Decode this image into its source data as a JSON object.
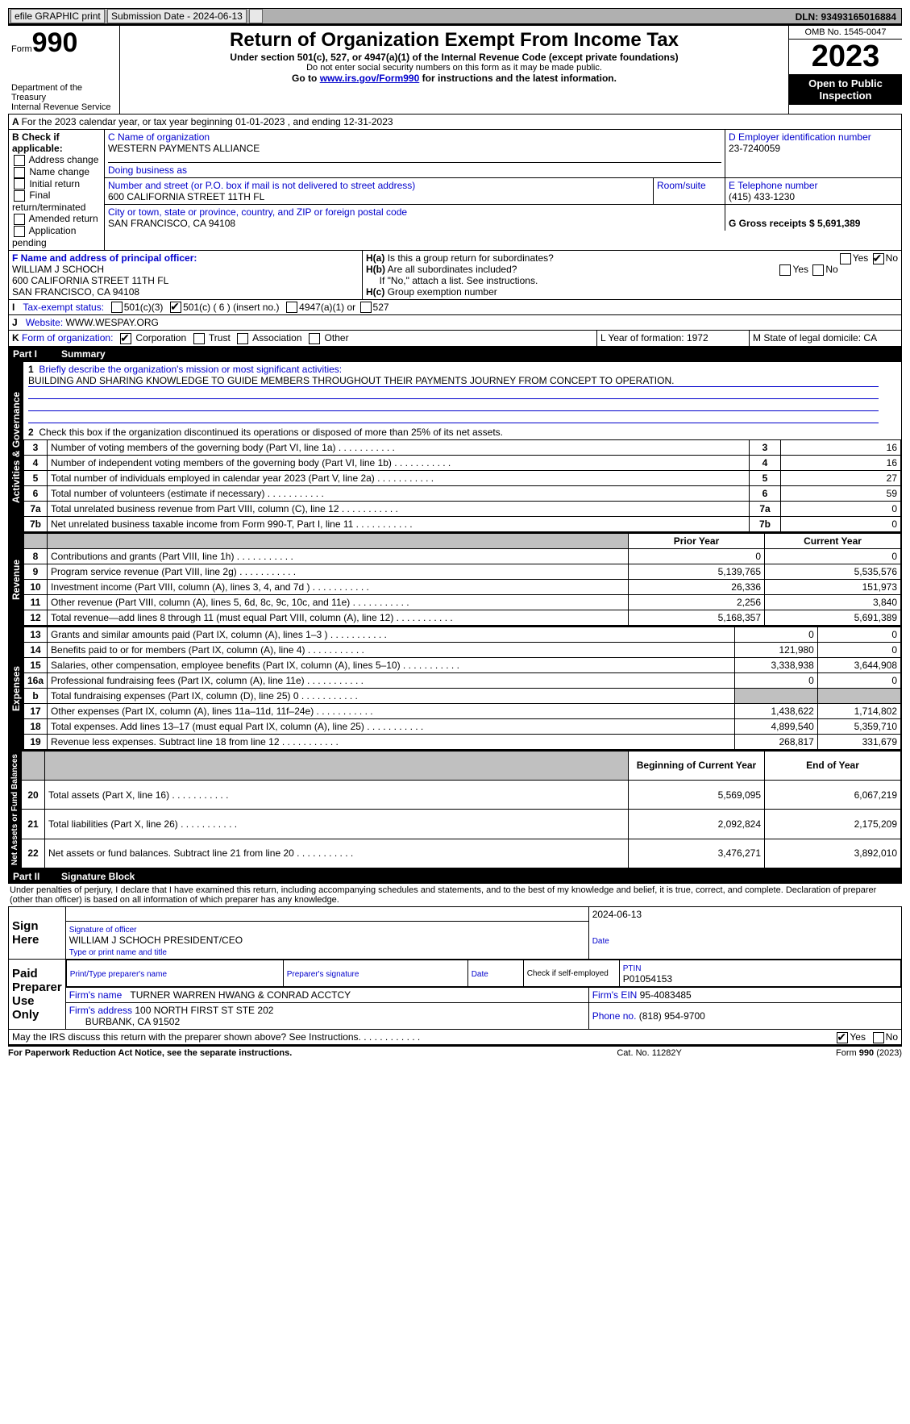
{
  "topbar": {
    "efile": "efile GRAPHIC print",
    "subdate_lbl": "Submission Date - 2024-06-13",
    "dln": "DLN: 93493165016884"
  },
  "header": {
    "form_prefix": "Form",
    "form_no": "990",
    "dept": "Department of the Treasury",
    "irs": "Internal Revenue Service",
    "title": "Return of Organization Exempt From Income Tax",
    "sub1": "Under section 501(c), 527, or 4947(a)(1) of the Internal Revenue Code (except private foundations)",
    "sub2": "Do not enter social security numbers on this form as it may be made public.",
    "sub3_pre": "Go to ",
    "sub3_link": "www.irs.gov/Form990",
    "sub3_post": " for instructions and the latest information.",
    "omb": "OMB No. 1545-0047",
    "year": "2023",
    "open": "Open to Public Inspection"
  },
  "secA": {
    "line": "For the 2023 calendar year, or tax year beginning 01-01-2023   , and ending 12-31-2023",
    "b_lbl": "B Check if applicable:",
    "b_opts": [
      "Address change",
      "Name change",
      "Initial return",
      "Final return/terminated",
      "Amended return",
      "Application pending"
    ],
    "c_lbl": "C Name of organization",
    "c_name": "WESTERN PAYMENTS ALLIANCE",
    "dba_lbl": "Doing business as",
    "addr_lbl": "Number and street (or P.O. box if mail is not delivered to street address)",
    "addr": "600 CALIFORNIA STREET 11TH FL",
    "room_lbl": "Room/suite",
    "city_lbl": "City or town, state or province, country, and ZIP or foreign postal code",
    "city": "SAN FRANCISCO, CA  94108",
    "d_lbl": "D Employer identification number",
    "d_val": "23-7240059",
    "e_lbl": "E Telephone number",
    "e_val": "(415) 433-1230",
    "g_lbl": "G Gross receipts $ 5,691,389",
    "f_lbl": "F  Name and address of principal officer:",
    "f_name": "WILLIAM J SCHOCH",
    "f_addr1": "600 CALIFORNIA STREET 11TH FL",
    "f_addr2": "SAN FRANCISCO, CA  94108",
    "ha": "Is this a group return for subordinates?",
    "hb": "Are all subordinates included?",
    "hb2": "If \"No,\" attach a list. See instructions.",
    "hc": "Group exemption number",
    "yes": "Yes",
    "no": "No",
    "i_lbl": "Tax-exempt status:",
    "i1": "501(c)(3)",
    "i2": "501(c) ( 6 ) (insert no.)",
    "i3": "4947(a)(1) or",
    "i4": "527",
    "j_lbl": "Website:",
    "j_val": "WWW.WESPAY.ORG",
    "k_lbl": "Form of organization:",
    "k1": "Corporation",
    "k2": "Trust",
    "k3": "Association",
    "k4": "Other",
    "l_lbl": "L Year of formation: 1972",
    "m_lbl": "M State of legal domicile: CA"
  },
  "part1": {
    "title": "Summary",
    "l1_lbl": "Briefly describe the organization's mission or most significant activities:",
    "l1_val": "BUILDING AND SHARING KNOWLEDGE TO GUIDE MEMBERS THROUGHOUT THEIR PAYMENTS JOURNEY FROM CONCEPT TO OPERATION.",
    "l2": "Check this box      if the organization discontinued its operations or disposed of more than 25% of its net assets.",
    "sideA": "Activities & Governance",
    "sideR": "Revenue",
    "sideE": "Expenses",
    "sideN": "Net Assets or Fund Balances",
    "rows_gov": [
      {
        "n": "3",
        "d": "Number of voting members of the governing body (Part VI, line 1a)",
        "v": "16"
      },
      {
        "n": "4",
        "d": "Number of independent voting members of the governing body (Part VI, line 1b)",
        "v": "16"
      },
      {
        "n": "5",
        "d": "Total number of individuals employed in calendar year 2023 (Part V, line 2a)",
        "v": "27"
      },
      {
        "n": "6",
        "d": "Total number of volunteers (estimate if necessary)",
        "v": "59"
      },
      {
        "n": "7a",
        "d": "Total unrelated business revenue from Part VIII, column (C), line 12",
        "v": "0"
      },
      {
        "n": "7b",
        "d": "Net unrelated business taxable income from Form 990-T, Part I, line 11",
        "v": "0"
      }
    ],
    "pycol": "Prior Year",
    "cycol": "Current Year",
    "rows_rev": [
      {
        "n": "8",
        "d": "Contributions and grants (Part VIII, line 1h)",
        "py": "0",
        "cy": "0"
      },
      {
        "n": "9",
        "d": "Program service revenue (Part VIII, line 2g)",
        "py": "5,139,765",
        "cy": "5,535,576"
      },
      {
        "n": "10",
        "d": "Investment income (Part VIII, column (A), lines 3, 4, and 7d )",
        "py": "26,336",
        "cy": "151,973"
      },
      {
        "n": "11",
        "d": "Other revenue (Part VIII, column (A), lines 5, 6d, 8c, 9c, 10c, and 11e)",
        "py": "2,256",
        "cy": "3,840"
      },
      {
        "n": "12",
        "d": "Total revenue—add lines 8 through 11 (must equal Part VIII, column (A), line 12)",
        "py": "5,168,357",
        "cy": "5,691,389"
      }
    ],
    "rows_exp": [
      {
        "n": "13",
        "d": "Grants and similar amounts paid (Part IX, column (A), lines 1–3 )",
        "py": "0",
        "cy": "0"
      },
      {
        "n": "14",
        "d": "Benefits paid to or for members (Part IX, column (A), line 4)",
        "py": "121,980",
        "cy": "0"
      },
      {
        "n": "15",
        "d": "Salaries, other compensation, employee benefits (Part IX, column (A), lines 5–10)",
        "py": "3,338,938",
        "cy": "3,644,908"
      },
      {
        "n": "16a",
        "d": "Professional fundraising fees (Part IX, column (A), line 11e)",
        "py": "0",
        "cy": "0"
      },
      {
        "n": "b",
        "d": "Total fundraising expenses (Part IX, column (D), line 25) 0",
        "py": "",
        "cy": "",
        "gray": true
      },
      {
        "n": "17",
        "d": "Other expenses (Part IX, column (A), lines 11a–11d, 11f–24e)",
        "py": "1,438,622",
        "cy": "1,714,802"
      },
      {
        "n": "18",
        "d": "Total expenses. Add lines 13–17 (must equal Part IX, column (A), line 25)",
        "py": "4,899,540",
        "cy": "5,359,710"
      },
      {
        "n": "19",
        "d": "Revenue less expenses. Subtract line 18 from line 12",
        "py": "268,817",
        "cy": "331,679"
      }
    ],
    "bycol": "Beginning of Current Year",
    "eycol": "End of Year",
    "rows_net": [
      {
        "n": "20",
        "d": "Total assets (Part X, line 16)",
        "py": "5,569,095",
        "cy": "6,067,219"
      },
      {
        "n": "21",
        "d": "Total liabilities (Part X, line 26)",
        "py": "2,092,824",
        "cy": "2,175,209"
      },
      {
        "n": "22",
        "d": "Net assets or fund balances. Subtract line 21 from line 20",
        "py": "3,476,271",
        "cy": "3,892,010"
      }
    ]
  },
  "part2": {
    "title": "Signature Block",
    "decl": "Under penalties of perjury, I declare that I have examined this return, including accompanying schedules and statements, and to the best of my knowledge and belief, it is true, correct, and complete. Declaration of preparer (other than officer) is based on all information of which preparer has any knowledge.",
    "sign": "Sign Here",
    "sig_date": "2024-06-13",
    "sig_lbl": "Signature of officer",
    "sig_name": "WILLIAM J SCHOCH  PRESIDENT/CEO",
    "sig_type": "Type or print name and title",
    "date_lbl": "Date",
    "paid": "Paid Preparer Use Only",
    "pp_name_lbl": "Print/Type preparer's name",
    "pp_sig_lbl": "Preparer's signature",
    "pp_date_lbl": "Date",
    "pp_se": "Check       if self-employed",
    "ptin_lbl": "PTIN",
    "ptin": "P01054153",
    "firm_lbl": "Firm's name",
    "firm": "TURNER WARREN HWANG & CONRAD ACCTCY",
    "fein_lbl": "Firm's EIN",
    "fein": "95-4083485",
    "faddr_lbl": "Firm's address",
    "faddr1": "100 NORTH FIRST ST STE 202",
    "faddr2": "BURBANK, CA  91502",
    "fphone_lbl": "Phone no.",
    "fphone": "(818) 954-9700",
    "discuss": "May the IRS discuss this return with the preparer shown above? See Instructions."
  },
  "footer": {
    "pra": "For Paperwork Reduction Act Notice, see the separate instructions.",
    "cat": "Cat. No. 11282Y",
    "form": "Form 990 (2023)"
  }
}
